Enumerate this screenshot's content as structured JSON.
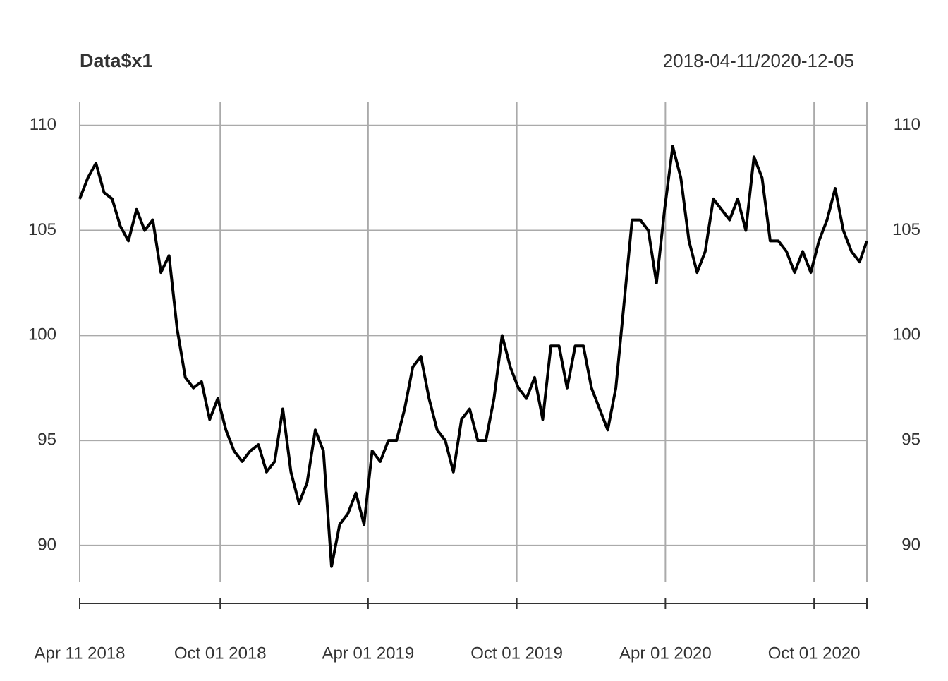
{
  "chart_data": {
    "type": "line",
    "title": "Data$x1",
    "subtitle": "2018-04-11/2020-12-05",
    "x": [
      "2018-04-11",
      "2018-04-21",
      "2018-05-01",
      "2018-05-11",
      "2018-05-21",
      "2018-05-31",
      "2018-06-10",
      "2018-06-20",
      "2018-06-30",
      "2018-07-10",
      "2018-07-20",
      "2018-07-30",
      "2018-08-09",
      "2018-08-19",
      "2018-08-29",
      "2018-09-08",
      "2018-09-18",
      "2018-09-28",
      "2018-10-08",
      "2018-10-18",
      "2018-10-28",
      "2018-11-07",
      "2018-11-17",
      "2018-11-27",
      "2018-12-07",
      "2018-12-17",
      "2018-12-27",
      "2019-01-06",
      "2019-01-16",
      "2019-01-26",
      "2019-02-05",
      "2019-02-15",
      "2019-02-25",
      "2019-03-07",
      "2019-03-17",
      "2019-03-27",
      "2019-04-06",
      "2019-04-16",
      "2019-04-26",
      "2019-05-06",
      "2019-05-16",
      "2019-05-26",
      "2019-06-05",
      "2019-06-15",
      "2019-06-25",
      "2019-07-05",
      "2019-07-15",
      "2019-07-25",
      "2019-08-04",
      "2019-08-14",
      "2019-08-24",
      "2019-09-03",
      "2019-09-13",
      "2019-09-23",
      "2019-10-03",
      "2019-10-13",
      "2019-10-23",
      "2019-11-02",
      "2019-11-12",
      "2019-11-22",
      "2019-12-02",
      "2019-12-12",
      "2019-12-22",
      "2020-01-01",
      "2020-01-11",
      "2020-01-21",
      "2020-01-31",
      "2020-02-10",
      "2020-02-20",
      "2020-03-01",
      "2020-03-11",
      "2020-03-21",
      "2020-03-31",
      "2020-04-10",
      "2020-04-20",
      "2020-04-30",
      "2020-05-10",
      "2020-05-20",
      "2020-05-30",
      "2020-06-09",
      "2020-06-19",
      "2020-06-29",
      "2020-07-09",
      "2020-07-19",
      "2020-07-29",
      "2020-08-08",
      "2020-08-18",
      "2020-08-28",
      "2020-09-07",
      "2020-09-17",
      "2020-09-27",
      "2020-10-07",
      "2020-10-17",
      "2020-10-27",
      "2020-11-06",
      "2020-11-16",
      "2020-11-26",
      "2020-12-05"
    ],
    "series": [
      {
        "name": "x1",
        "color": "#000000",
        "values": [
          106.5,
          107.5,
          108.2,
          106.8,
          106.5,
          105.2,
          104.5,
          106.0,
          105.0,
          105.5,
          103.0,
          103.8,
          100.3,
          98.0,
          97.5,
          97.8,
          96.0,
          97.0,
          95.5,
          94.5,
          94.0,
          94.5,
          94.8,
          93.5,
          94.0,
          96.5,
          93.5,
          92.0,
          93.0,
          95.5,
          94.5,
          89.0,
          91.0,
          91.5,
          92.5,
          91.0,
          94.5,
          94.0,
          95.0,
          95.0,
          96.5,
          98.5,
          99.0,
          97.0,
          95.5,
          95.0,
          93.5,
          96.0,
          96.5,
          95.0,
          95.0,
          97.0,
          100.0,
          98.5,
          97.5,
          97.0,
          98.0,
          96.0,
          99.5,
          99.5,
          97.5,
          99.5,
          99.5,
          97.5,
          96.5,
          95.5,
          97.5,
          101.5,
          105.5,
          105.5,
          105.0,
          102.5,
          106.0,
          109.0,
          107.5,
          104.5,
          103.0,
          104.0,
          106.5,
          106.0,
          105.5,
          106.5,
          105.0,
          108.5,
          107.5,
          104.5,
          104.5,
          104.0,
          103.0,
          104.0,
          103.0,
          104.5,
          105.5,
          107.0,
          105.0,
          104.0,
          103.5,
          104.5
        ]
      }
    ],
    "xlim": [
      "2018-04-11",
      "2020-12-05"
    ],
    "xticks": [
      {
        "value": "2018-04-11",
        "label": "Apr 11 2018"
      },
      {
        "value": "2018-10-01",
        "label": "Oct 01 2018"
      },
      {
        "value": "2019-04-01",
        "label": "Apr 01 2019"
      },
      {
        "value": "2019-10-01",
        "label": "Oct 01 2019"
      },
      {
        "value": "2020-04-01",
        "label": "Apr 01 2020"
      },
      {
        "value": "2020-10-01",
        "label": "Oct 01 2020"
      }
    ],
    "ylim": [
      88.25,
      111.1
    ],
    "yticks": [
      90,
      95,
      100,
      105,
      110
    ],
    "grid": true
  }
}
